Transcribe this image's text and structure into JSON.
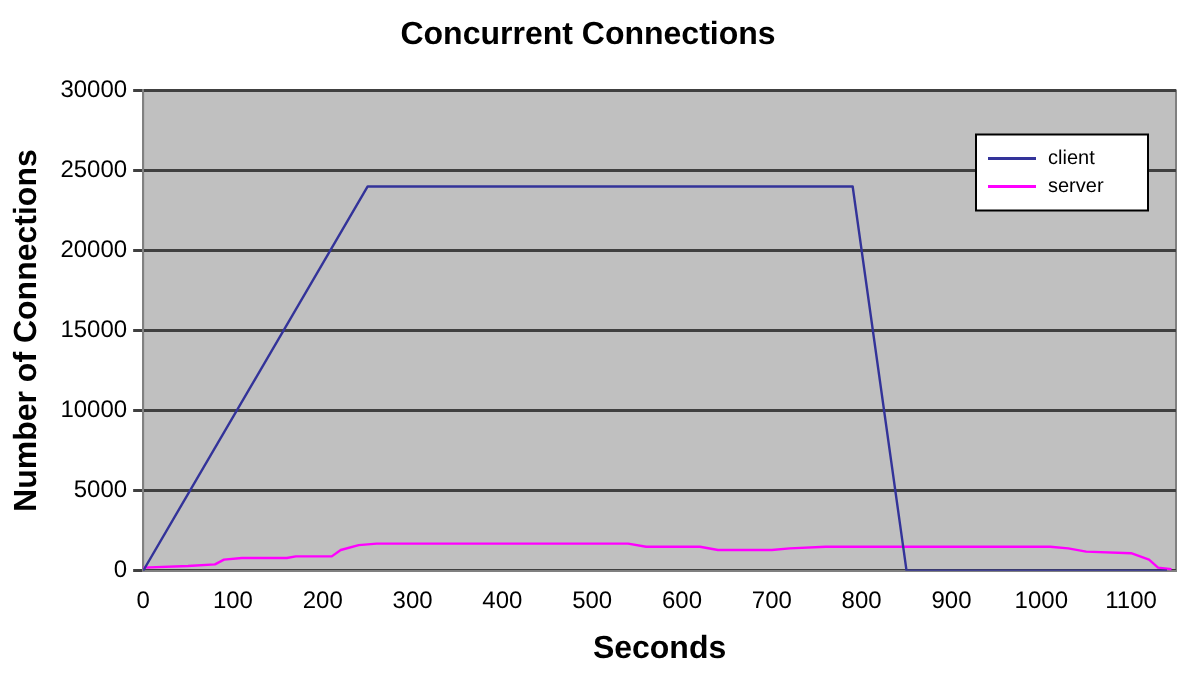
{
  "chart_data": {
    "type": "line",
    "title": "Concurrent Connections",
    "xlabel": "Seconds",
    "ylabel": "Number of Connections",
    "xlim": [
      0,
      1150
    ],
    "xticks": [
      0,
      100,
      200,
      300,
      400,
      500,
      600,
      700,
      800,
      900,
      1000,
      1100
    ],
    "ylim": [
      0,
      30000
    ],
    "yticks": [
      0,
      5000,
      10000,
      15000,
      20000,
      25000,
      30000
    ],
    "grid": "y",
    "legend": "top right",
    "marker": "none",
    "line_style": "solid",
    "series": [
      {
        "name": "client",
        "color": "#333399",
        "x": [
          0,
          250,
          790,
          850,
          1140
        ],
        "values": [
          0,
          24000,
          24000,
          0,
          0
        ]
      },
      {
        "name": "server",
        "color": "#ff00ff",
        "x": [
          0,
          50,
          80,
          90,
          110,
          160,
          170,
          210,
          220,
          240,
          260,
          540,
          560,
          620,
          640,
          700,
          720,
          760,
          1010,
          1030,
          1050,
          1100,
          1120,
          1130,
          1145
        ],
        "values": [
          200,
          300,
          400,
          700,
          800,
          800,
          900,
          900,
          1300,
          1600,
          1700,
          1700,
          1500,
          1500,
          1300,
          1300,
          1400,
          1500,
          1500,
          1400,
          1200,
          1100,
          700,
          200,
          100
        ]
      }
    ]
  }
}
